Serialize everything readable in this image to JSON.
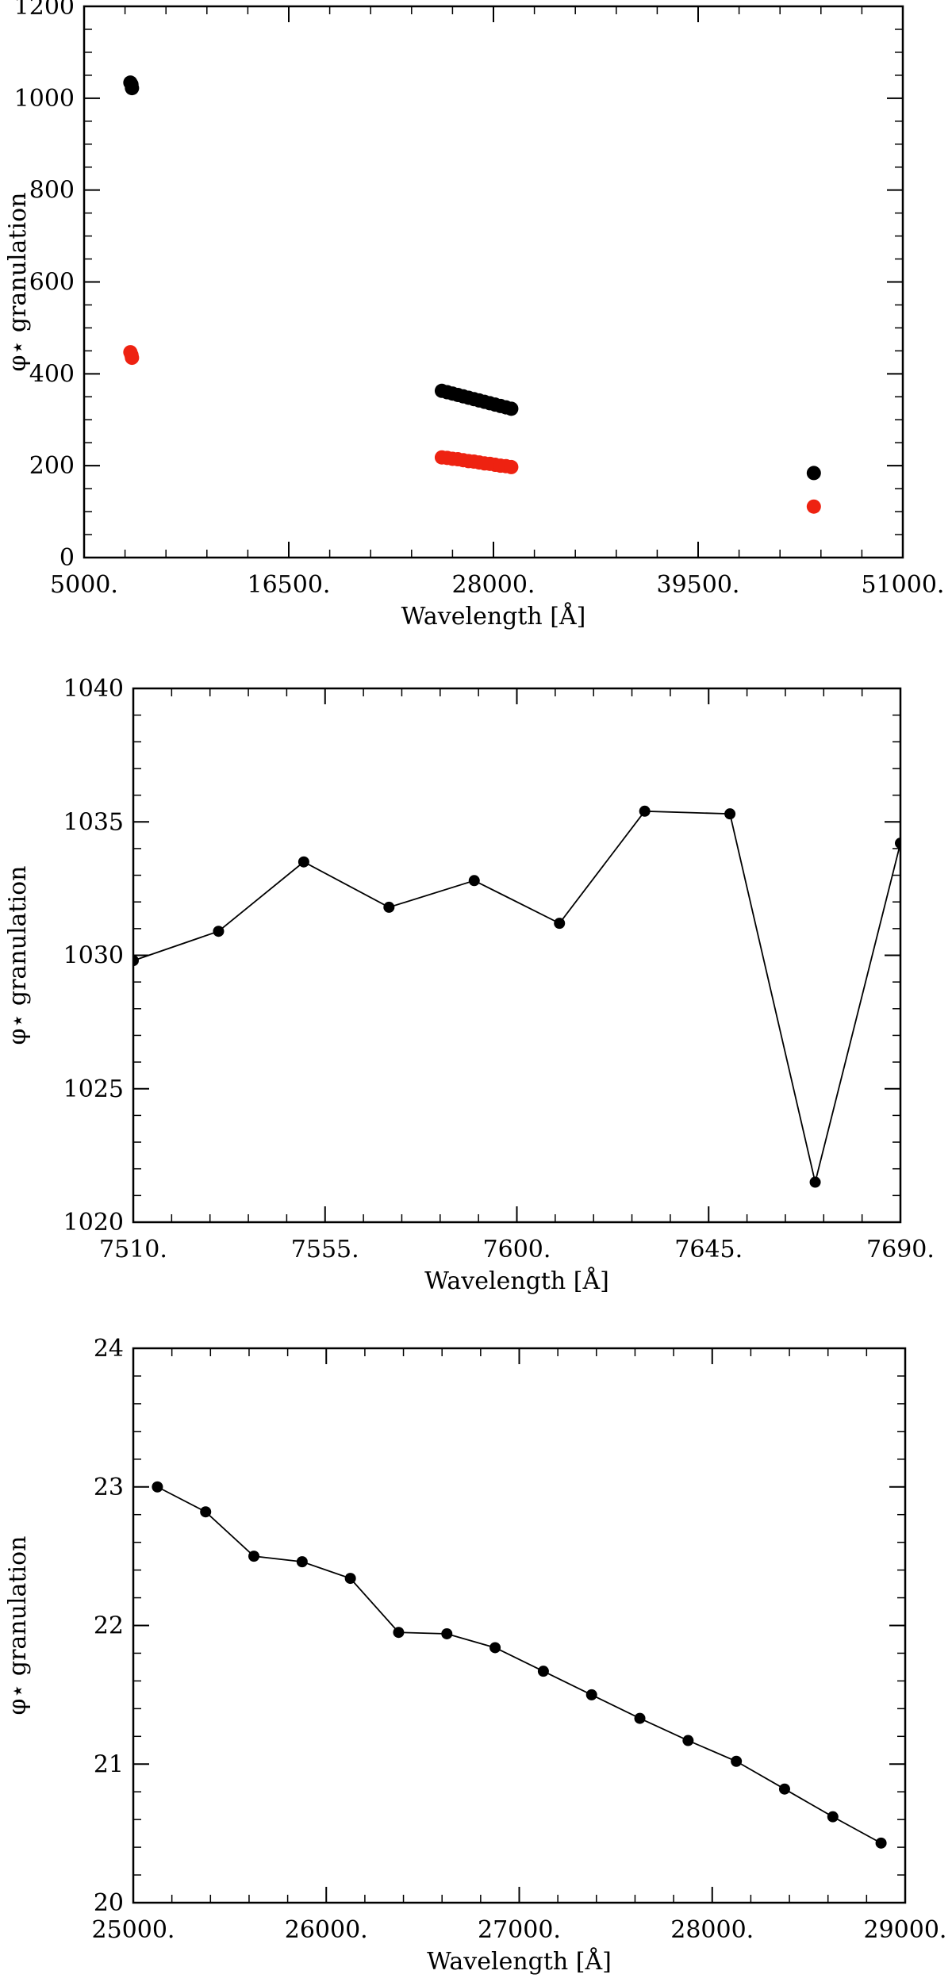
{
  "chart_data": [
    {
      "type": "scatter",
      "xlabel": "Wavelength [Å]",
      "ylabel": "φ⋆ granulation",
      "xlim": [
        5000,
        51000
      ],
      "ylim": [
        0,
        1200
      ],
      "x_ticks": [
        5000,
        16500,
        28000,
        39500,
        51000
      ],
      "x_tick_labels": [
        "5000.",
        "16500.",
        "28000.",
        "39500.",
        "51000."
      ],
      "y_ticks": [
        0,
        200,
        400,
        600,
        800,
        1000,
        1200
      ],
      "y_tick_labels": [
        "0",
        "200",
        "400",
        "600",
        "800",
        "1000",
        "1200"
      ],
      "grid": false,
      "legend": "none",
      "series": [
        {
          "color": "#000000",
          "marker": "filled-circle",
          "line": false,
          "points": [
            {
              "x": 7600,
              "y": 1034
            },
            {
              "x": 7660,
              "y": 1030
            },
            {
              "x": 7690,
              "y": 1022
            },
            {
              "x": 25100,
              "y": 363
            },
            {
              "x": 25400,
              "y": 360
            },
            {
              "x": 25700,
              "y": 357
            },
            {
              "x": 26000,
              "y": 354
            },
            {
              "x": 26300,
              "y": 351
            },
            {
              "x": 26600,
              "y": 348
            },
            {
              "x": 26900,
              "y": 345
            },
            {
              "x": 27200,
              "y": 342
            },
            {
              "x": 27500,
              "y": 339
            },
            {
              "x": 27800,
              "y": 336
            },
            {
              "x": 28100,
              "y": 333
            },
            {
              "x": 28400,
              "y": 330
            },
            {
              "x": 28700,
              "y": 327
            },
            {
              "x": 29000,
              "y": 324
            },
            {
              "x": 46000,
              "y": 184
            }
          ]
        },
        {
          "color": "#ee2211",
          "marker": "filled-circle",
          "line": false,
          "points": [
            {
              "x": 7600,
              "y": 447
            },
            {
              "x": 7660,
              "y": 441
            },
            {
              "x": 7690,
              "y": 435
            },
            {
              "x": 25100,
              "y": 218
            },
            {
              "x": 25400,
              "y": 217
            },
            {
              "x": 25700,
              "y": 215
            },
            {
              "x": 26000,
              "y": 214
            },
            {
              "x": 26300,
              "y": 212
            },
            {
              "x": 26600,
              "y": 210
            },
            {
              "x": 26900,
              "y": 209
            },
            {
              "x": 27200,
              "y": 207
            },
            {
              "x": 27500,
              "y": 205
            },
            {
              "x": 27800,
              "y": 204
            },
            {
              "x": 28100,
              "y": 202
            },
            {
              "x": 28400,
              "y": 200
            },
            {
              "x": 28700,
              "y": 199
            },
            {
              "x": 29000,
              "y": 197
            },
            {
              "x": 46000,
              "y": 111
            }
          ]
        }
      ]
    },
    {
      "type": "line",
      "xlabel": "Wavelength [Å]",
      "ylabel": "φ⋆ granulation",
      "xlim": [
        7510,
        7690
      ],
      "ylim": [
        1020,
        1040
      ],
      "x_ticks": [
        7510,
        7555,
        7600,
        7645,
        7690
      ],
      "x_tick_labels": [
        "7510.",
        "7555.",
        "7600.",
        "7645.",
        "7690."
      ],
      "y_ticks": [
        1020,
        1025,
        1030,
        1035,
        1040
      ],
      "y_tick_labels": [
        "1020",
        "1025",
        "1030",
        "1035",
        "1040"
      ],
      "grid": false,
      "legend": "none",
      "series": [
        {
          "color": "#000000",
          "marker": "filled-circle",
          "line": true,
          "points": [
            {
              "x": 7510,
              "y": 1029.8
            },
            {
              "x": 7530,
              "y": 1030.9
            },
            {
              "x": 7550,
              "y": 1033.5
            },
            {
              "x": 7570,
              "y": 1031.8
            },
            {
              "x": 7590,
              "y": 1032.8
            },
            {
              "x": 7610,
              "y": 1031.2
            },
            {
              "x": 7630,
              "y": 1035.4
            },
            {
              "x": 7650,
              "y": 1035.3
            },
            {
              "x": 7670,
              "y": 1021.5
            },
            {
              "x": 7690,
              "y": 1034.2
            }
          ]
        }
      ]
    },
    {
      "type": "line",
      "xlabel": "Wavelength [Å]",
      "ylabel": "φ⋆ granulation",
      "xlim": [
        25000,
        29000
      ],
      "ylim": [
        20,
        24
      ],
      "x_ticks": [
        25000,
        26000,
        27000,
        28000,
        29000
      ],
      "x_tick_labels": [
        "25000.",
        "26000.",
        "27000.",
        "28000.",
        "29000."
      ],
      "y_ticks": [
        20,
        21,
        22,
        23,
        24
      ],
      "y_tick_labels": [
        "20",
        "21",
        "22",
        "23",
        "24"
      ],
      "grid": false,
      "legend": "none",
      "series": [
        {
          "color": "#000000",
          "marker": "filled-circle",
          "line": true,
          "points": [
            {
              "x": 25125,
              "y": 23.0
            },
            {
              "x": 25375,
              "y": 22.82
            },
            {
              "x": 25625,
              "y": 22.5
            },
            {
              "x": 25875,
              "y": 22.46
            },
            {
              "x": 26125,
              "y": 22.34
            },
            {
              "x": 26375,
              "y": 21.95
            },
            {
              "x": 26625,
              "y": 21.94
            },
            {
              "x": 26875,
              "y": 21.84
            },
            {
              "x": 27125,
              "y": 21.67
            },
            {
              "x": 27375,
              "y": 21.5
            },
            {
              "x": 27625,
              "y": 21.33
            },
            {
              "x": 27875,
              "y": 21.17
            },
            {
              "x": 28125,
              "y": 21.02
            },
            {
              "x": 28375,
              "y": 20.82
            },
            {
              "x": 28625,
              "y": 20.62
            },
            {
              "x": 28875,
              "y": 20.43
            }
          ]
        }
      ]
    }
  ]
}
